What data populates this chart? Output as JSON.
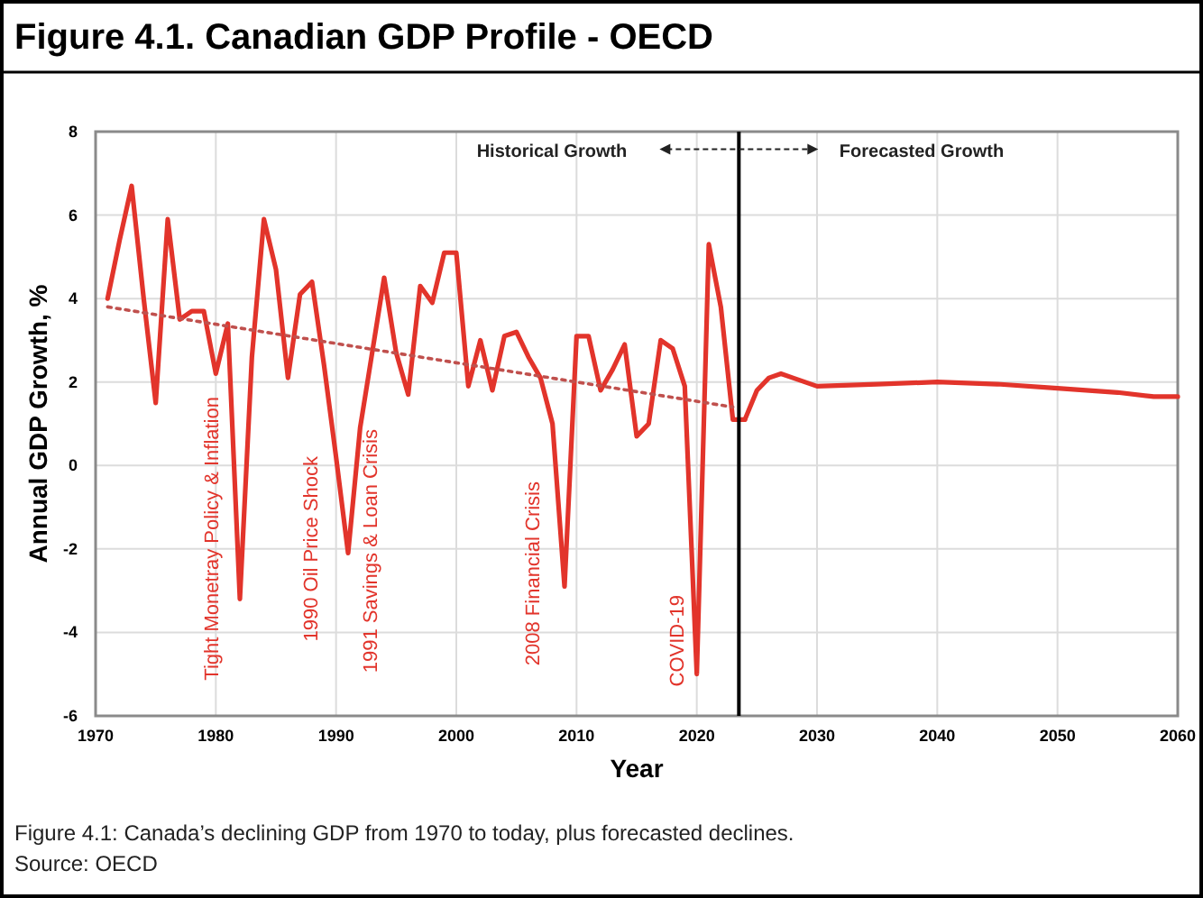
{
  "chart_data": {
    "type": "line",
    "title": "Figure 4.1. Canadian GDP Profile - OECD",
    "xlabel": "Year",
    "ylabel": "Annual GDP Growth, %",
    "xlim": [
      1970,
      2060
    ],
    "ylim": [
      -6,
      8
    ],
    "xticks": [
      1970,
      1980,
      1990,
      2000,
      2010,
      2020,
      2030,
      2040,
      2050,
      2060
    ],
    "yticks": [
      -6,
      -4,
      -2,
      0,
      2,
      4,
      6,
      8
    ],
    "grid": true,
    "series": [
      {
        "color": "#e2342b",
        "line_style": "solid",
        "x": [
          1971,
          1972,
          1973,
          1974,
          1975,
          1976,
          1977,
          1978,
          1979,
          1980,
          1981,
          1982,
          1983,
          1984,
          1985,
          1986,
          1987,
          1988,
          1989,
          1990,
          1991,
          1992,
          1993,
          1994,
          1995,
          1996,
          1997,
          1998,
          1999,
          2000,
          2001,
          2002,
          2003,
          2004,
          2005,
          2006,
          2007,
          2008,
          2009,
          2010,
          2011,
          2012,
          2013,
          2014,
          2015,
          2016,
          2017,
          2018,
          2019,
          2020,
          2021,
          2022,
          2023,
          2024
        ],
        "values": [
          4.0,
          5.4,
          6.7,
          4.0,
          1.5,
          5.9,
          3.5,
          3.7,
          3.7,
          2.2,
          3.4,
          -3.2,
          2.6,
          5.9,
          4.7,
          2.1,
          4.1,
          4.4,
          2.4,
          0.2,
          -2.1,
          0.9,
          2.7,
          4.5,
          2.7,
          1.7,
          4.3,
          3.9,
          5.1,
          5.1,
          1.9,
          3.0,
          1.8,
          3.1,
          3.2,
          2.6,
          2.1,
          1.0,
          -2.9,
          3.1,
          3.1,
          1.8,
          2.3,
          2.9,
          0.7,
          1.0,
          3.0,
          2.8,
          1.9,
          -5.0,
          5.3,
          3.8,
          1.1,
          1.1
        ]
      },
      {
        "color": "#e2342b",
        "line_style": "solid",
        "x": [
          2024,
          2025,
          2026,
          2027,
          2028,
          2030,
          2035,
          2040,
          2045,
          2050,
          2055,
          2058,
          2060
        ],
        "values": [
          1.1,
          1.8,
          2.1,
          2.2,
          2.1,
          1.9,
          1.95,
          2.0,
          1.95,
          1.85,
          1.75,
          1.65,
          1.65
        ]
      },
      {
        "color": "#c0504d",
        "line_style": "dotted",
        "x": [
          1971,
          2023
        ],
        "values": [
          3.8,
          1.4
        ]
      }
    ],
    "ref_lines": [
      {
        "axis": "x",
        "value": 2023.5,
        "color": "#000000",
        "line_style": "solid"
      }
    ],
    "annotations": [
      "Tight Monetray Policy & Inflation",
      "1990 Oil Price Shock",
      "1991 Savings & Loan Crisis",
      "2008 Financial Crisis",
      "COVID-19",
      "Historical Growth",
      "Forecasted Growth",
      "Figure 4.1: Canada’s declining GDP from 1970 to today, plus forecasted declines.",
      "Source: OECD"
    ]
  }
}
